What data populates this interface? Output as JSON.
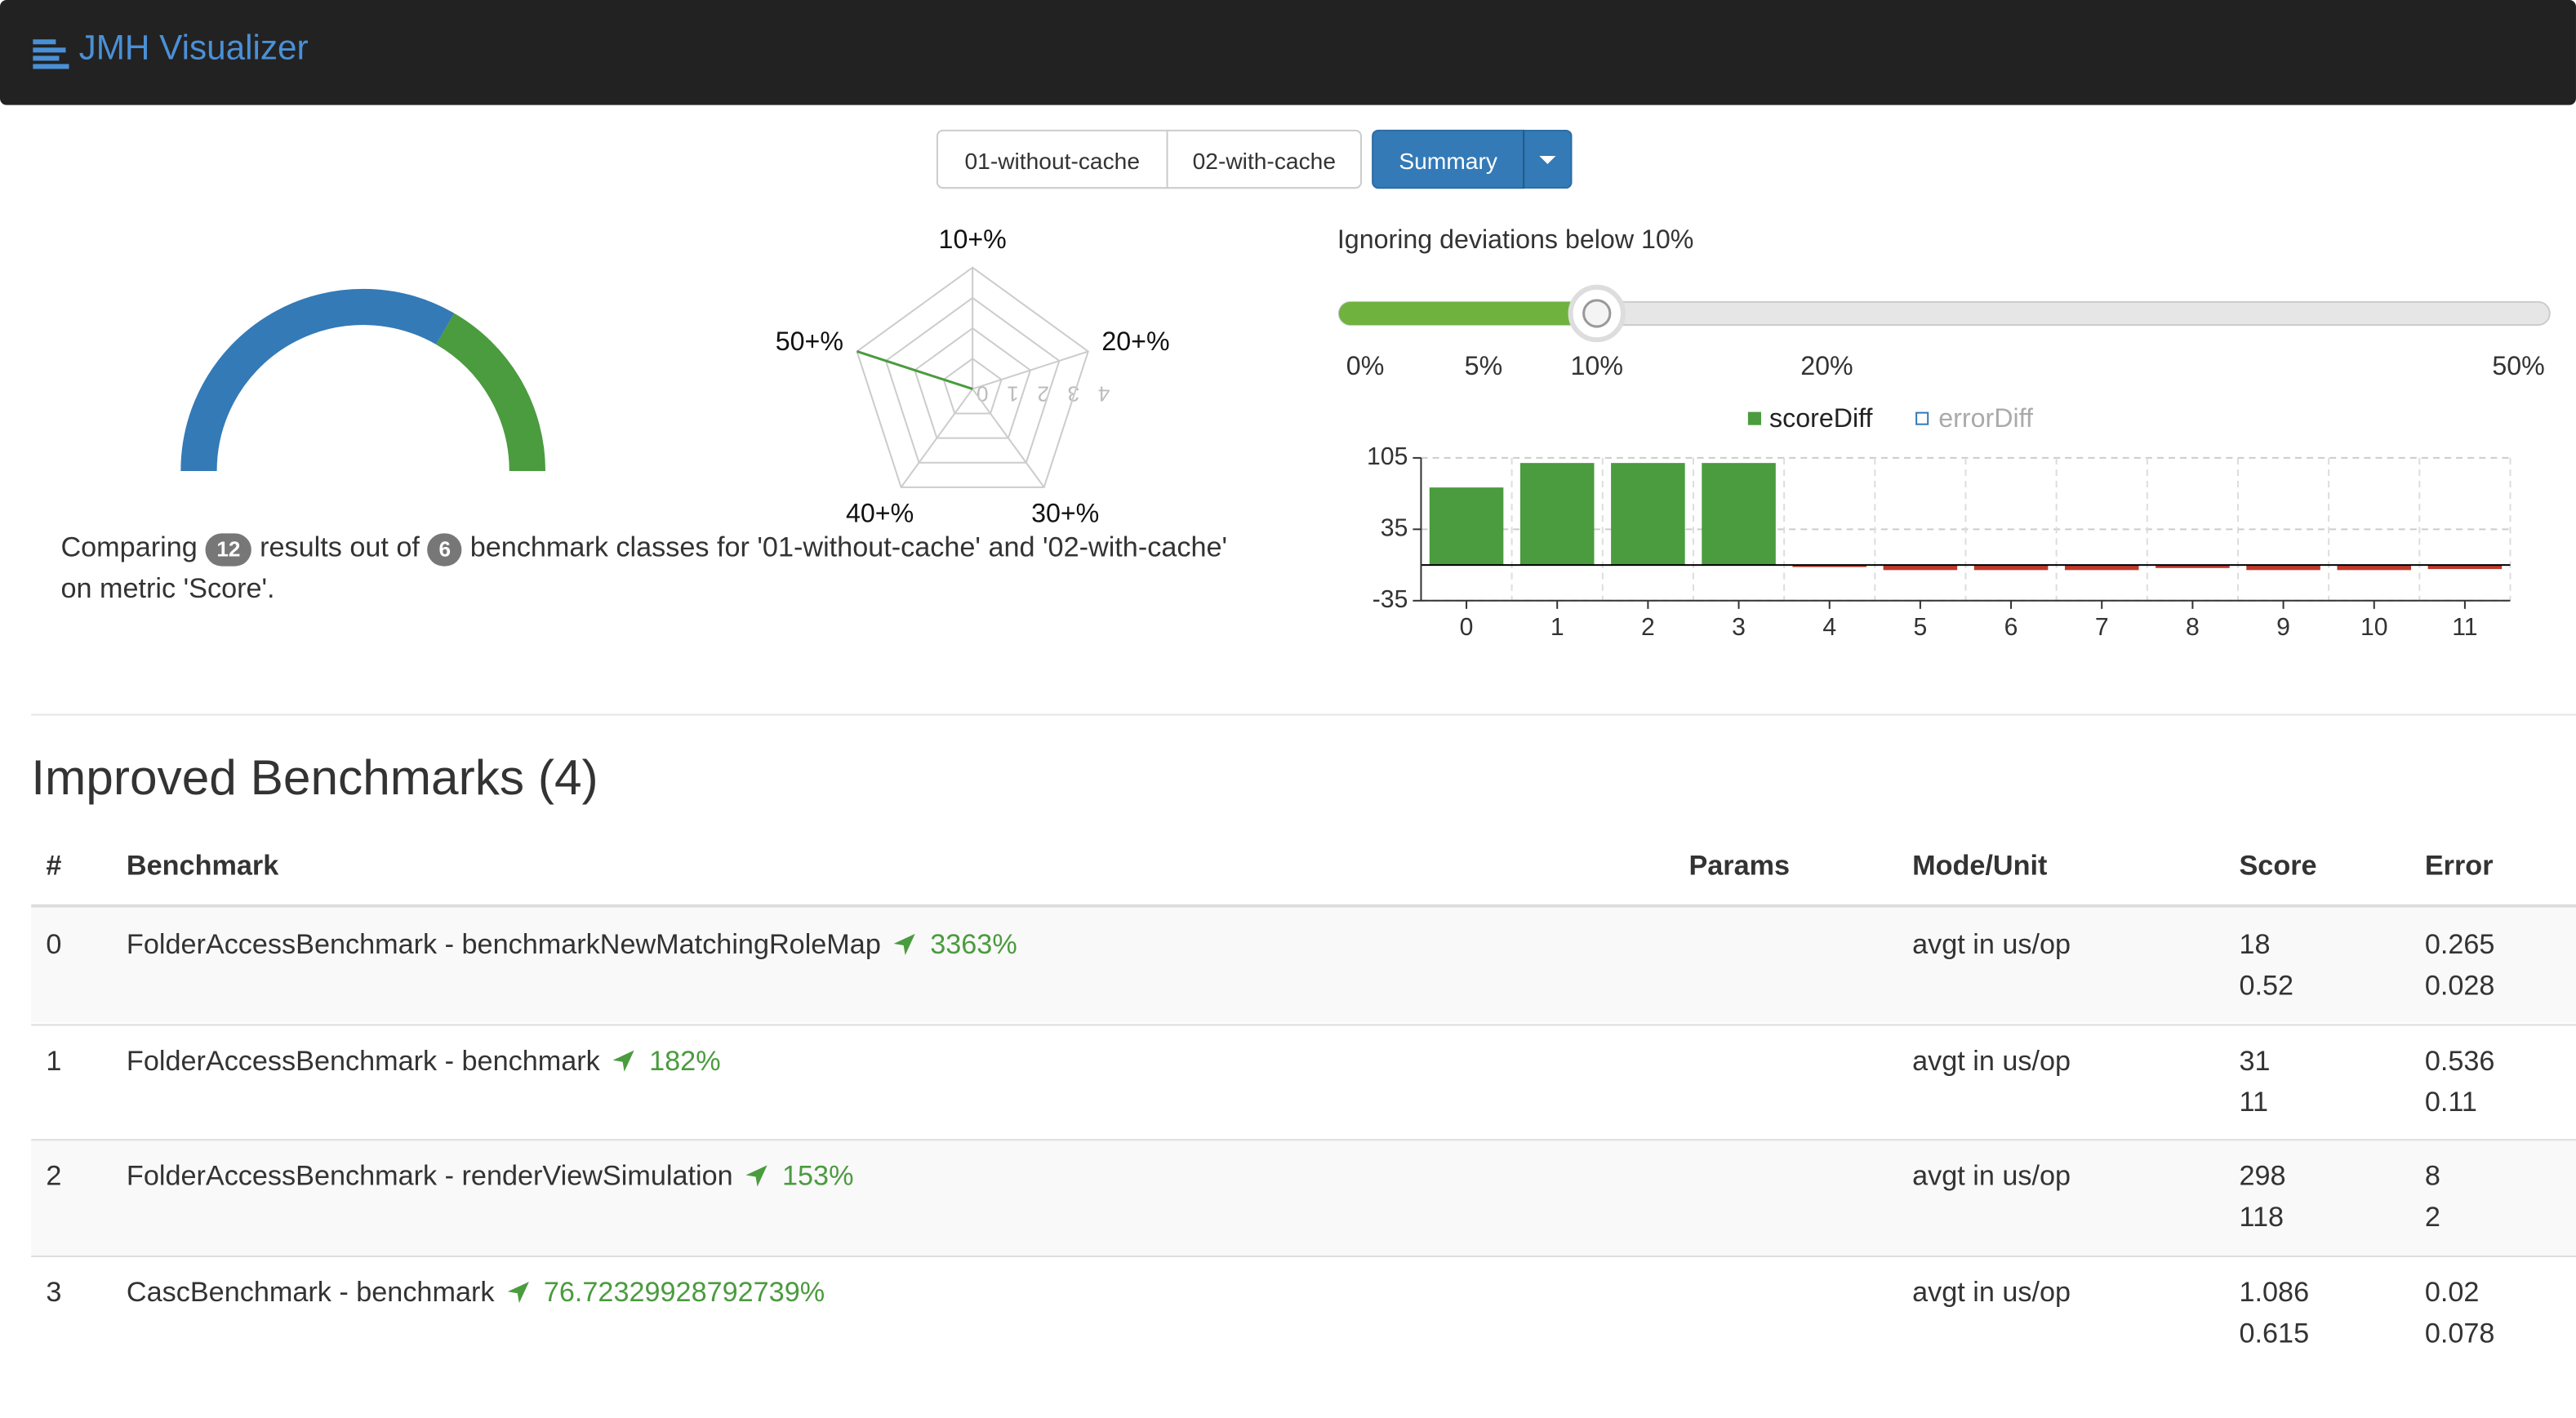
{
  "header": {
    "title": "JMH Visualizer"
  },
  "toolbar": {
    "buttons": [
      "01-without-cache",
      "02-with-cache"
    ],
    "active": "Summary"
  },
  "gauge": {
    "type": "gauge",
    "segments": [
      {
        "color": "#337ab7",
        "value": 8
      },
      {
        "color": "#4b9b3f",
        "value": 4
      }
    ]
  },
  "radar": {
    "type": "radar",
    "axes": [
      "10+%",
      "20+%",
      "30+%",
      "40+%",
      "50+%"
    ],
    "values": [
      0,
      0,
      0,
      0,
      4
    ],
    "rlim": [
      0,
      4
    ],
    "rticks": [
      0,
      1,
      2,
      3,
      4
    ],
    "color": "#4b9b3f"
  },
  "summary": {
    "parts": [
      "Comparing",
      12,
      "results out of",
      6,
      "benchmark classes for '01-without-cache' and '02-with-cache' on metric 'Score'."
    ]
  },
  "slider": {
    "label": "Ignoring deviations below 10%",
    "value": 10,
    "ticks": [
      {
        "value": 0,
        "label": "0%"
      },
      {
        "value": 5,
        "label": "5%"
      },
      {
        "value": 10,
        "label": "10%"
      },
      {
        "value": 20,
        "label": "20%"
      },
      {
        "value": 50,
        "label": "50%"
      }
    ],
    "color": "#6fb23e"
  },
  "chart_data": {
    "type": "bar",
    "categories": [
      0,
      1,
      2,
      3,
      4,
      5,
      6,
      7,
      8,
      9,
      10,
      11
    ],
    "series": [
      {
        "name": "scoreDiff",
        "color": "#4b9b3f",
        "negative_color": "#c0392b",
        "values": [
          76,
          100,
          100,
          100,
          -2,
          -5,
          -5,
          -5,
          -3,
          -5,
          -5,
          -4
        ]
      }
    ],
    "hidden_series": [
      {
        "name": "errorDiff",
        "color": "#337ab7"
      }
    ],
    "ylim": [
      -35,
      105
    ],
    "yticks": [
      -35,
      35,
      105
    ],
    "grid": true
  },
  "section": {
    "title": "Improved Benchmarks (4)"
  },
  "table": {
    "columns": [
      "#",
      "Benchmark",
      "Params",
      "Mode/Unit",
      "Score",
      "Error"
    ],
    "rows": [
      {
        "index": 0,
        "benchmark": "FolderAccessBenchmark - benchmarkNewMatchingRoleMap",
        "change": "3363%",
        "mode": "avgt in us/op",
        "score": [
          18,
          0.52
        ],
        "error": [
          0.265,
          0.028
        ]
      },
      {
        "index": 1,
        "benchmark": "FolderAccessBenchmark - benchmark",
        "change": "182%",
        "mode": "avgt in us/op",
        "score": [
          31,
          11
        ],
        "error": [
          0.536,
          0.11
        ]
      },
      {
        "index": 2,
        "benchmark": "FolderAccessBenchmark - renderViewSimulation",
        "change": "153%",
        "mode": "avgt in us/op",
        "score": [
          298,
          118
        ],
        "error": [
          8,
          2
        ]
      },
      {
        "index": 3,
        "benchmark": "CascBenchmark - benchmark",
        "change": "76.72329928792739%",
        "mode": "avgt in us/op",
        "score": [
          1.086,
          0.615
        ],
        "error": [
          0.02,
          0.078
        ]
      }
    ]
  }
}
